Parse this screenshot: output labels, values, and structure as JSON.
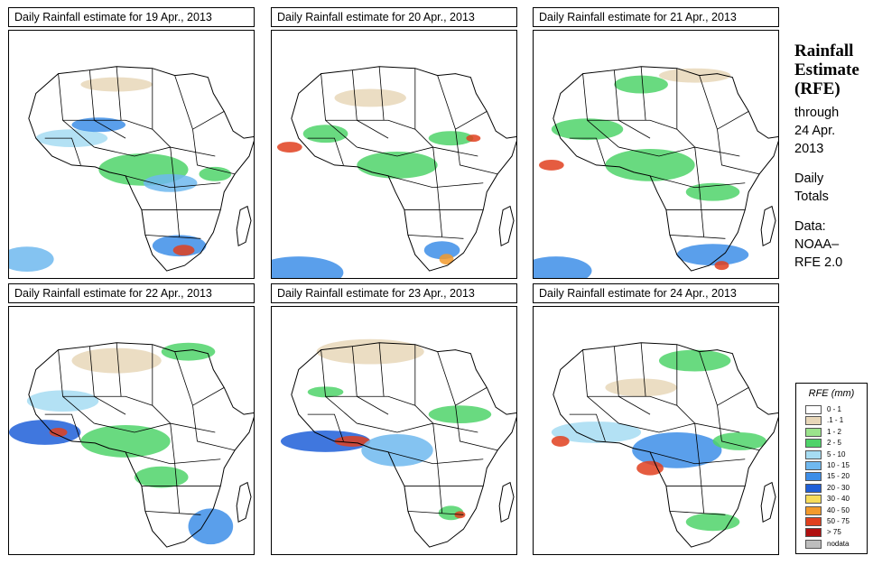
{
  "panels": [
    {
      "title": "Daily Rainfall estimate for  19 Apr., 2013"
    },
    {
      "title": "Daily Rainfall estimate for  20 Apr., 2013"
    },
    {
      "title": "Daily Rainfall estimate for  21 Apr., 2013"
    },
    {
      "title": "Daily Rainfall estimate for  22 Apr., 2013"
    },
    {
      "title": "Daily Rainfall estimate for  23 Apr., 2013"
    },
    {
      "title": "Daily Rainfall estimate for  24 Apr., 2013"
    }
  ],
  "sidebar": {
    "heading_line1": "Rainfall",
    "heading_line2": "Estimate",
    "heading_line3": "(RFE)",
    "through": "through",
    "date_line1": "24 Apr.",
    "date_line2": "2013",
    "daily": "Daily",
    "totals": "Totals",
    "data_label": "Data:",
    "source_line1": "NOAA–",
    "source_line2": "RFE 2.0"
  },
  "legend": {
    "title": "RFE (mm)",
    "items": [
      {
        "label": "0 - 1",
        "color": "#ffffff"
      },
      {
        "label": ".1 - 1",
        "color": "#e8d7b9"
      },
      {
        "label": "1 - 2",
        "color": "#9be38c"
      },
      {
        "label": "2 - 5",
        "color": "#4fd36a"
      },
      {
        "label": "5 - 10",
        "color": "#a6dcf2"
      },
      {
        "label": "10 - 15",
        "color": "#6fb8ef"
      },
      {
        "label": "15 - 20",
        "color": "#3d8ee8"
      },
      {
        "label": "20 - 30",
        "color": "#1f5fd8"
      },
      {
        "label": "30 - 40",
        "color": "#f7dc5a"
      },
      {
        "label": "40 - 50",
        "color": "#f39a2c"
      },
      {
        "label": "50 - 75",
        "color": "#e0401e"
      },
      {
        "label": "> 75",
        "color": "#b01010"
      },
      {
        "label": "nodata",
        "color": "#bdbdbd"
      }
    ]
  }
}
